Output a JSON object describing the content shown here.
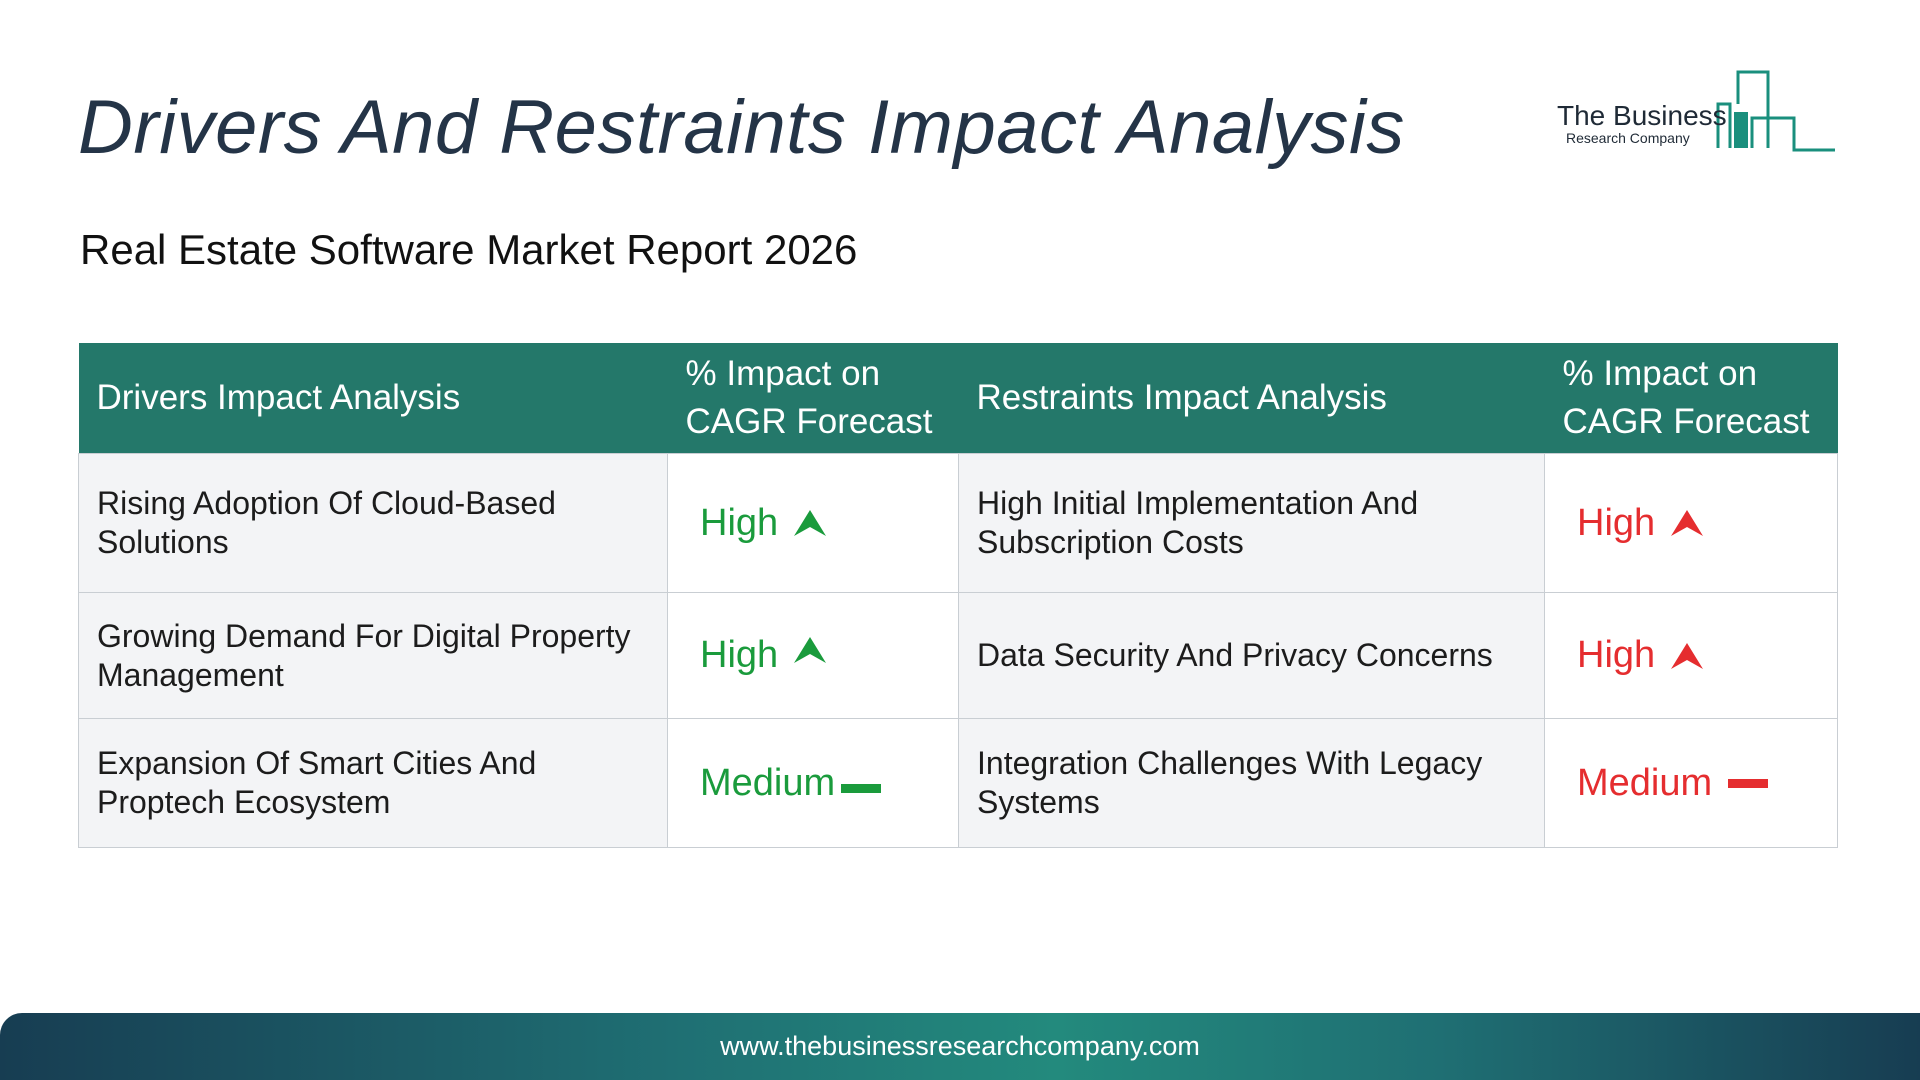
{
  "header": {
    "title": "Drivers And Restraints Impact Analysis",
    "subtitle": "Real Estate Software Market Report 2026"
  },
  "logo": {
    "name": "The Business",
    "tagline": "Research Company",
    "color": "#1a8f7d"
  },
  "table": {
    "headers": {
      "drivers": "Drivers Impact Analysis",
      "drivers_impact": "% Impact on CAGR Forecast",
      "restraints": "Restraints Impact Analysis",
      "restraints_impact": "% Impact on CAGR Forecast"
    },
    "header_color": "#24786a",
    "rows": [
      {
        "driver": "Rising Adoption Of Cloud-Based Solutions",
        "driver_impact": "High",
        "driver_icon": "arrow-up-icon",
        "restraint": "High Initial Implementation And Subscription Costs",
        "restraint_impact": "High",
        "restraint_icon": "arrow-up-icon"
      },
      {
        "driver": "Growing Demand For Digital Property Management",
        "driver_impact": "High",
        "driver_icon": "arrow-up-icon",
        "restraint": "Data Security And Privacy Concerns",
        "restraint_impact": "High",
        "restraint_icon": "arrow-up-icon"
      },
      {
        "driver": "Expansion Of Smart Cities And Proptech Ecosystem",
        "driver_impact": "Medium",
        "driver_icon": "dash-icon",
        "restraint": "Integration Challenges With Legacy Systems",
        "restraint_impact": "Medium",
        "restraint_icon": "dash-icon"
      }
    ],
    "driver_color": "#1a9b3c",
    "restraint_color": "#e52d2f"
  },
  "footer": {
    "url": "www.thebusinessresearchcompany.com"
  }
}
